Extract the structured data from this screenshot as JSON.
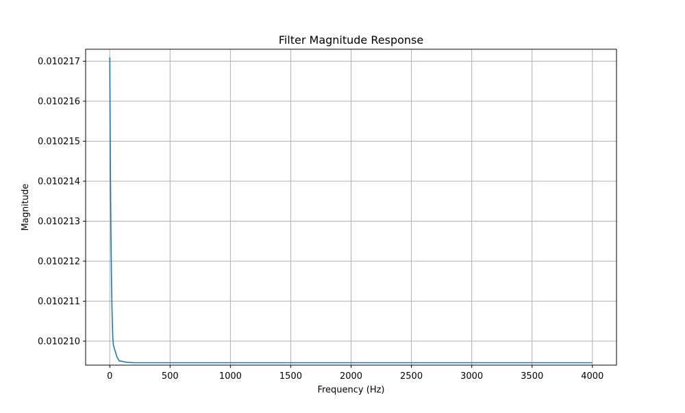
{
  "chart_data": {
    "type": "line",
    "title": "Filter Magnitude Response",
    "xlabel": "Frequency (Hz)",
    "ylabel": "Magnitude",
    "xlim": [
      -200,
      4200
    ],
    "ylim": [
      0.0102094,
      0.0102173
    ],
    "xticks": [
      0,
      500,
      1000,
      1500,
      2000,
      2500,
      3000,
      3500,
      4000
    ],
    "xtick_labels": [
      "0",
      "500",
      "1000",
      "1500",
      "2000",
      "2500",
      "3000",
      "3500",
      "4000"
    ],
    "yticks": [
      0.01021,
      0.010211,
      0.010212,
      0.010213,
      0.010214,
      0.010215,
      0.010216,
      0.010217
    ],
    "ytick_labels": [
      "0.010210",
      "0.010211",
      "0.010212",
      "0.010213",
      "0.010214",
      "0.010215",
      "0.010216",
      "0.010217"
    ],
    "grid": true,
    "series": [
      {
        "color": "#1f77b4",
        "x": [
          0,
          5,
          10,
          15,
          20,
          25,
          30,
          40,
          50,
          60,
          70,
          80,
          100,
          120,
          150,
          200,
          300,
          500,
          1000,
          2000,
          3000,
          4000
        ],
        "y": [
          0.0102171,
          0.0102145,
          0.0102126,
          0.0102114,
          0.0102106,
          0.0102101,
          0.0102099,
          0.0102098,
          0.0102097,
          0.0102096,
          0.01020955,
          0.0102095,
          0.0102095,
          0.01020948,
          0.01020947,
          0.01020946,
          0.01020946,
          0.01020946,
          0.01020946,
          0.01020946,
          0.01020946,
          0.01020946
        ]
      }
    ]
  }
}
